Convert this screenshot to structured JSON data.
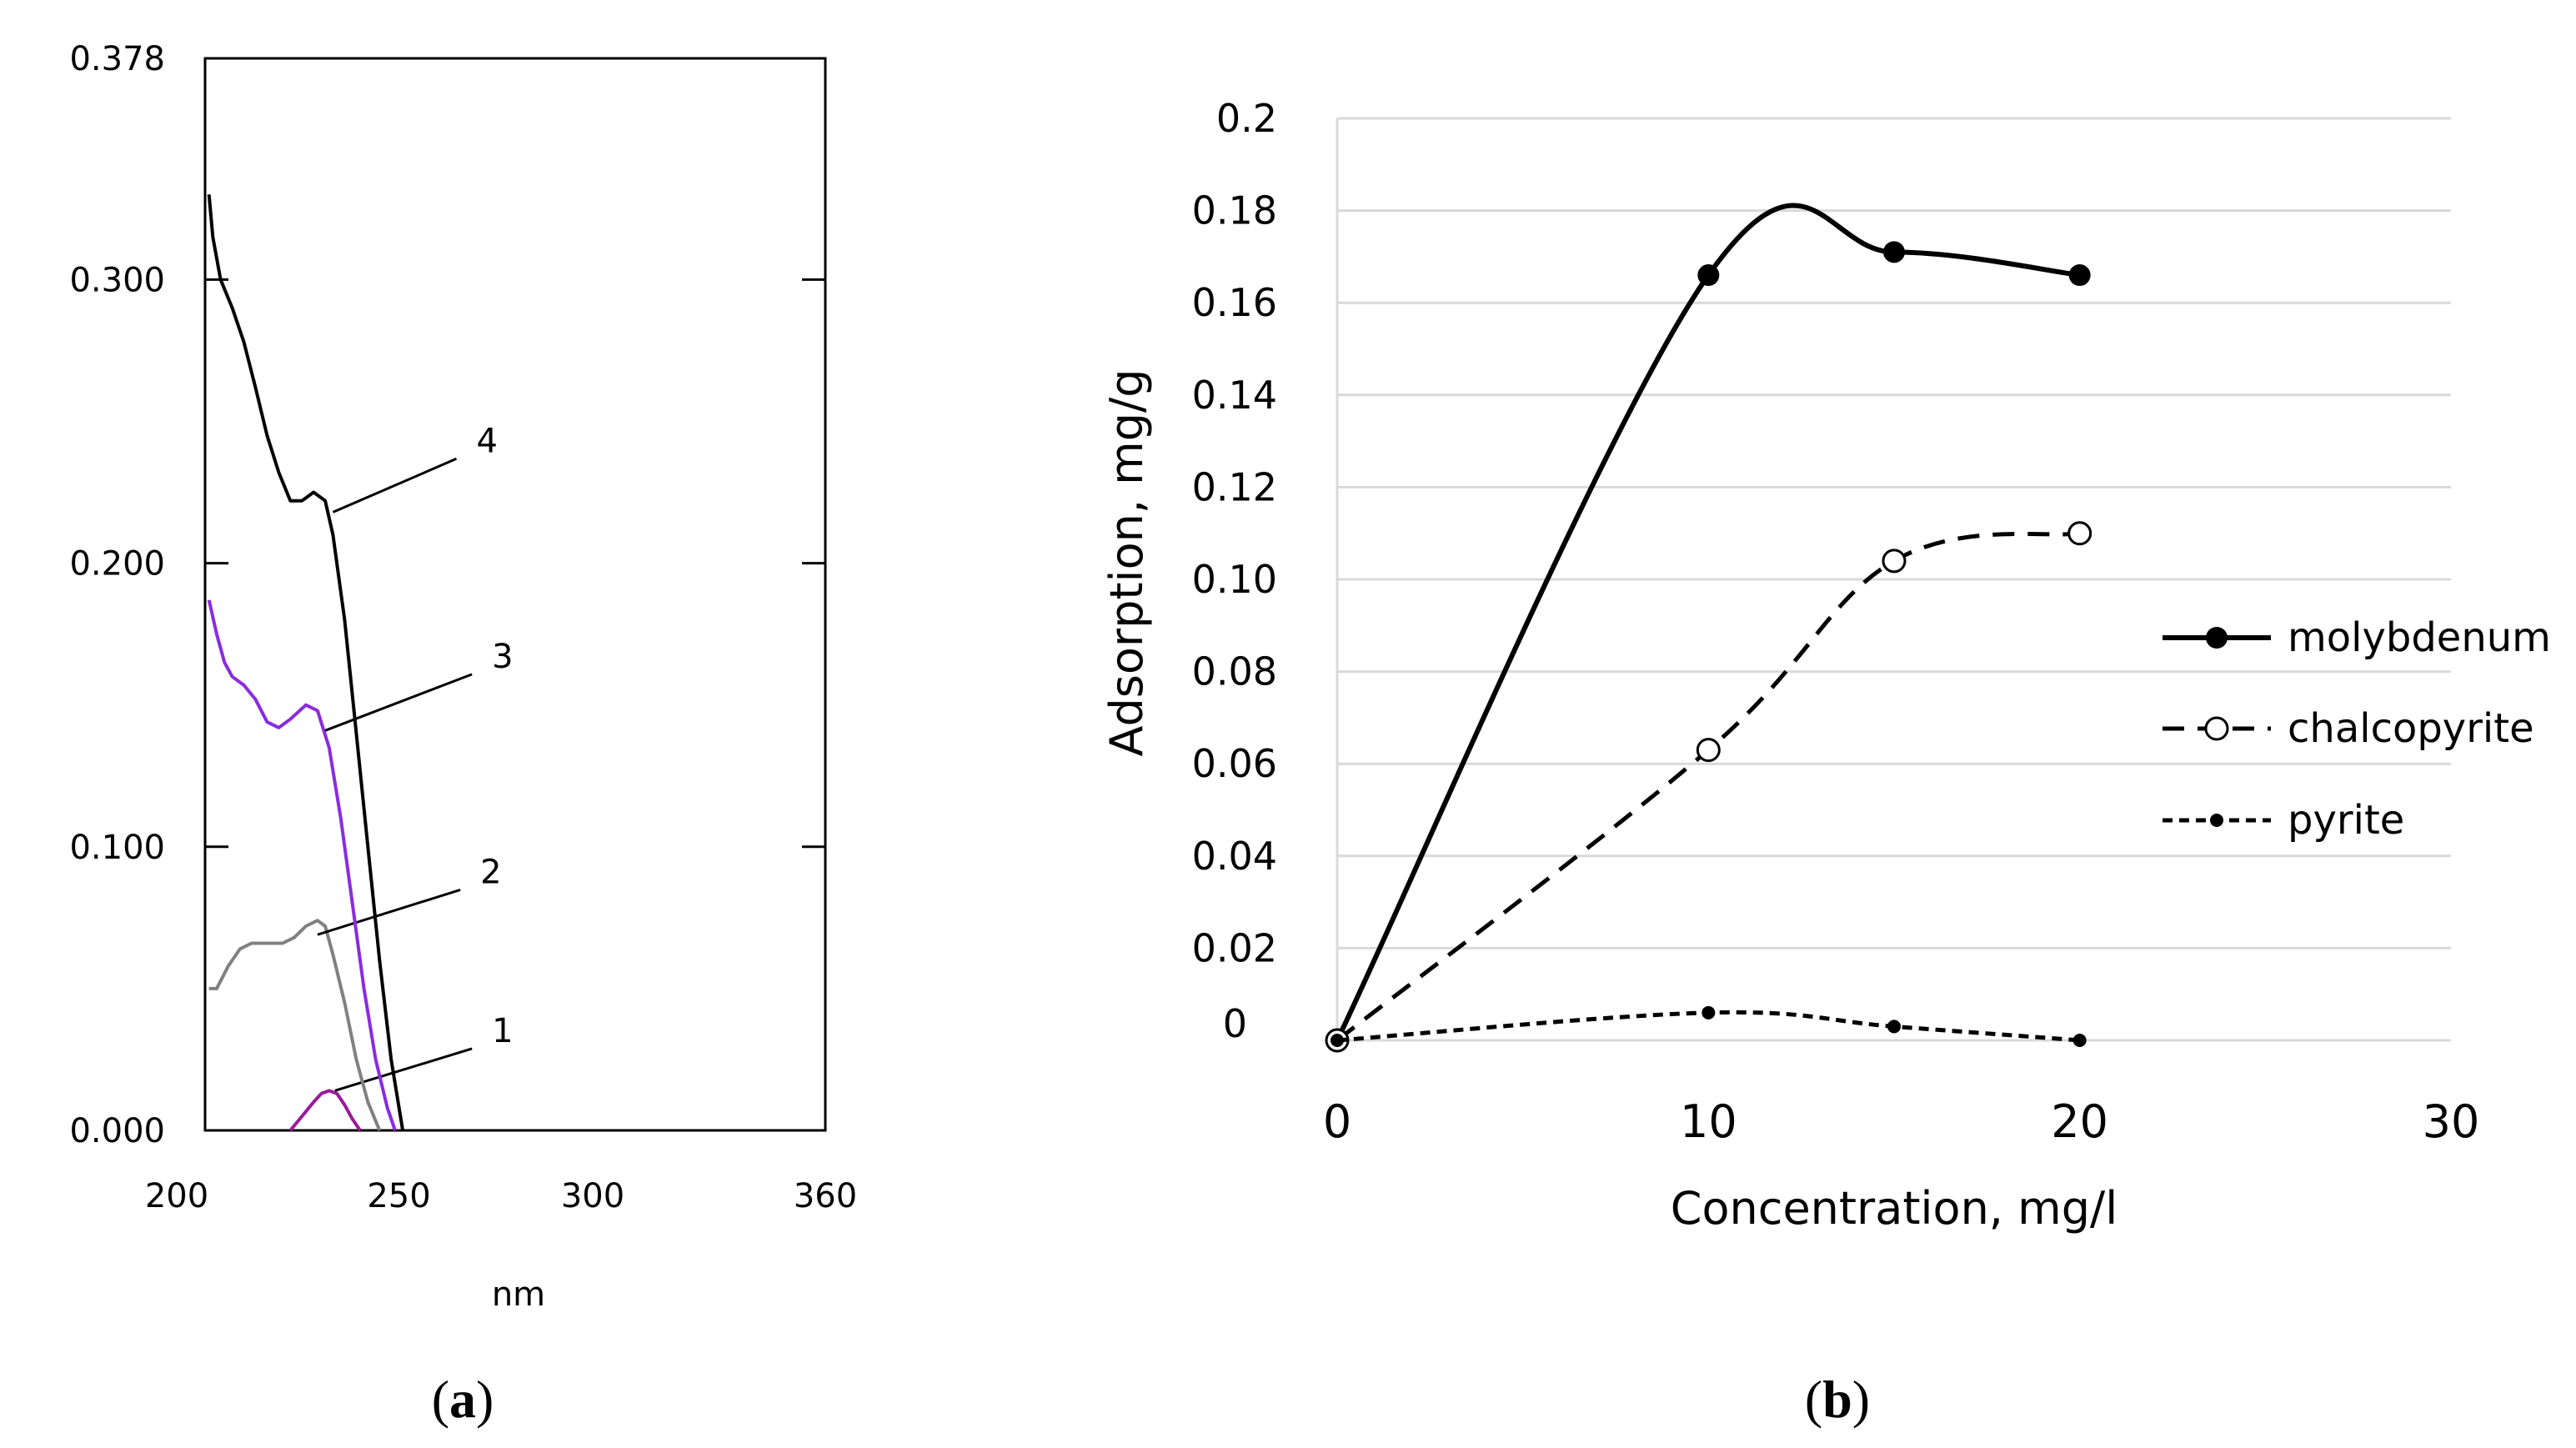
{
  "chart_data": [
    {
      "panel_label_open": "(",
      "panel_label_letter": "a",
      "panel_label_close": ")",
      "type": "line",
      "title": "",
      "xlabel": "nm",
      "ylabel": "",
      "xlim": [
        200,
        360
      ],
      "ylim": [
        0.0,
        0.378
      ],
      "x_ticks": [
        "200",
        "250",
        "300",
        "360"
      ],
      "x_tick_values": [
        200,
        250,
        300,
        360
      ],
      "y_ticks": [
        "0.000",
        "0.100",
        "0.200",
        "0.300",
        "0.378"
      ],
      "y_tick_values": [
        0.0,
        0.1,
        0.2,
        0.3,
        0.378
      ],
      "series": [
        {
          "name": "1",
          "color": "#9a1a9a",
          "points": [
            [
              222,
              0.0
            ],
            [
              225,
              0.005
            ],
            [
              228,
              0.01
            ],
            [
              230,
              0.013
            ],
            [
              232,
              0.014
            ],
            [
              234,
              0.013
            ],
            [
              236,
              0.009
            ],
            [
              238,
              0.004
            ],
            [
              240,
              0.0
            ]
          ],
          "label_anchor": [
            233.5,
            0.014
          ],
          "label_pos": [
            274,
            0.03
          ]
        },
        {
          "name": "2",
          "color": "#808080",
          "points": [
            [
              201,
              0.05
            ],
            [
              203,
              0.05
            ],
            [
              206,
              0.058
            ],
            [
              209,
              0.064
            ],
            [
              212,
              0.066
            ],
            [
              216,
              0.066
            ],
            [
              220,
              0.066
            ],
            [
              223,
              0.068
            ],
            [
              226,
              0.072
            ],
            [
              229,
              0.074
            ],
            [
              231,
              0.072
            ],
            [
              233,
              0.062
            ],
            [
              236,
              0.045
            ],
            [
              239,
              0.025
            ],
            [
              242,
              0.01
            ],
            [
              245,
              0.0
            ]
          ],
          "label_anchor": [
            229,
            0.069
          ],
          "label_pos": [
            271,
            0.086
          ]
        },
        {
          "name": "3",
          "color": "#8a2be2",
          "points": [
            [
              201,
              0.187
            ],
            [
              203,
              0.175
            ],
            [
              205,
              0.165
            ],
            [
              207,
              0.16
            ],
            [
              210,
              0.157
            ],
            [
              213,
              0.152
            ],
            [
              216,
              0.144
            ],
            [
              219,
              0.142
            ],
            [
              222,
              0.145
            ],
            [
              226,
              0.15
            ],
            [
              229,
              0.148
            ],
            [
              232,
              0.135
            ],
            [
              235,
              0.11
            ],
            [
              238,
              0.08
            ],
            [
              241,
              0.05
            ],
            [
              244,
              0.025
            ],
            [
              247,
              0.008
            ],
            [
              249,
              0.0
            ]
          ],
          "label_anchor": [
            231,
            0.141
          ],
          "label_pos": [
            274,
            0.162
          ]
        },
        {
          "name": "4",
          "color": "#000000",
          "points": [
            [
              201,
              0.33
            ],
            [
              202,
              0.315
            ],
            [
              204,
              0.3
            ],
            [
              207,
              0.29
            ],
            [
              210,
              0.278
            ],
            [
              213,
              0.262
            ],
            [
              216,
              0.245
            ],
            [
              219,
              0.232
            ],
            [
              222,
              0.222
            ],
            [
              225,
              0.222
            ],
            [
              228,
              0.225
            ],
            [
              231,
              0.222
            ],
            [
              233,
              0.21
            ],
            [
              236,
              0.18
            ],
            [
              239,
              0.14
            ],
            [
              242,
              0.1
            ],
            [
              245,
              0.06
            ],
            [
              248,
              0.025
            ],
            [
              251,
              0.0
            ]
          ],
          "label_anchor": [
            233,
            0.218
          ],
          "label_pos": [
            270,
            0.238
          ]
        }
      ]
    },
    {
      "panel_label_open": "(",
      "panel_label_letter": "b",
      "panel_label_close": ")",
      "type": "line",
      "title": "",
      "xlabel": "Concentration, mg/l",
      "ylabel": "Adsorption, mg/g",
      "xlim": [
        0,
        30
      ],
      "ylim": [
        0,
        0.2
      ],
      "grid": true,
      "x_ticks": [
        "0",
        "10",
        "20",
        "30"
      ],
      "x_tick_values": [
        0,
        10,
        20,
        30
      ],
      "y_ticks": [
        "0",
        "0.02",
        "0.04",
        "0.06",
        "0.08",
        "0.10",
        "0.12",
        "0.14",
        "0.16",
        "0.18",
        "0.2"
      ],
      "y_tick_values": [
        0,
        0.02,
        0.04,
        0.06,
        0.08,
        0.1,
        0.12,
        0.14,
        0.16,
        0.18,
        0.2
      ],
      "legend_position": "right",
      "series": [
        {
          "name": "molybdenum",
          "style": "solid",
          "marker": "filled-circle",
          "x": [
            0,
            10,
            15,
            20
          ],
          "y": [
            0,
            0.166,
            0.171,
            0.166
          ]
        },
        {
          "name": "chalcopyrite",
          "style": "dashed",
          "marker": "open-circle",
          "x": [
            0,
            10,
            15,
            20
          ],
          "y": [
            0,
            0.063,
            0.104,
            0.11
          ]
        },
        {
          "name": "pyrite",
          "style": "dotted",
          "marker": "small-dot",
          "x": [
            0,
            10,
            15,
            20
          ],
          "y": [
            0,
            0.006,
            0.003,
            0
          ]
        }
      ]
    }
  ]
}
